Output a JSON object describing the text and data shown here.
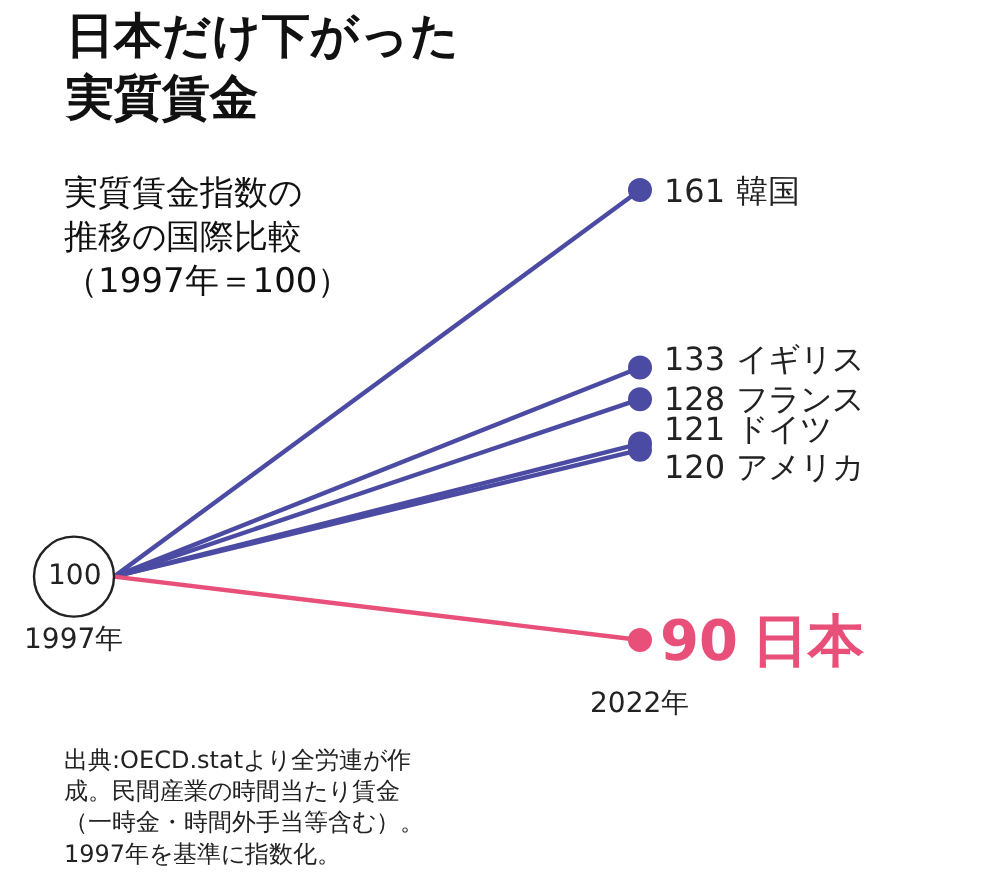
{
  "chart_data": {
    "type": "line",
    "title": "日本だけ下がった実質賃金",
    "subtitle": "実質賃金指数の推移の国際比較（1997年＝100）",
    "categories": [
      "1997年",
      "2022年"
    ],
    "series": [
      {
        "name": "韓国",
        "color": "#4b4ba3",
        "values": [
          100,
          161
        ],
        "value_labels": [
          "100",
          "161"
        ]
      },
      {
        "name": "イギリス",
        "color": "#4b4ba3",
        "values": [
          100,
          133
        ],
        "value_labels": [
          null,
          "133"
        ]
      },
      {
        "name": "フランス",
        "color": "#4b4ba3",
        "values": [
          100,
          128
        ],
        "value_labels": [
          null,
          "128"
        ]
      },
      {
        "name": "ドイツ",
        "color": "#4b4ba3",
        "values": [
          100,
          121
        ],
        "value_labels": [
          null,
          "121"
        ]
      },
      {
        "name": "アメリカ",
        "color": "#4b4ba3",
        "values": [
          100,
          120
        ],
        "value_labels": [
          null,
          "120"
        ]
      },
      {
        "name": "日本",
        "color": "#e8507a",
        "values": [
          100,
          90
        ],
        "value_labels": [
          null,
          "90"
        ]
      }
    ],
    "annotations": [
      "出典:OECD.statより全労連が作成。民間産業の時間当たり賃金（一時金・時間外手当等含む）。1997年を基準に指数化。"
    ],
    "legend": false,
    "marker": "circle"
  }
}
